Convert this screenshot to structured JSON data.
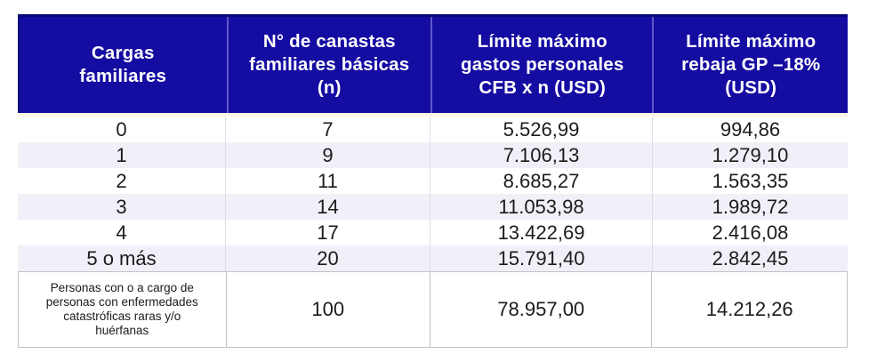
{
  "colors": {
    "header_bg": "#150CA2",
    "header_top_border": "#0A0875",
    "header_divider": "#5F59C6",
    "header_text": "#FFFFFF",
    "cream_separator": "#F9F3E4",
    "row_stripe": "#F0F0F8",
    "row_divider": "#DDDDE4",
    "last_row_border": "#C2C2C2",
    "body_text": "#1B1B1B"
  },
  "display": {
    "headers": [
      "Cargas\nfamiliares",
      "N° de canastas\nfamiliares básicas\n(n)",
      "Límite máximo\ngastos personales\nCFB x n (USD)",
      "Límite máximo\nrebaja GP –18%\n(USD)"
    ],
    "last_row_label": "Personas con o a cargo de\npersonas con enfermedades\ncatastróficas raras y/o\nhuérfanas"
  },
  "chart_data": {
    "type": "table",
    "columns": [
      "Cargas familiares",
      "N° de canastas familiares básicas (n)",
      "Límite máximo gastos personales CFB x n (USD)",
      "Límite máximo rebaja GP –18% (USD)"
    ],
    "rows": [
      [
        "0",
        "7",
        "5.526,99",
        "994,86"
      ],
      [
        "1",
        "9",
        "7.106,13",
        "1.279,10"
      ],
      [
        "2",
        "11",
        "8.685,27",
        "1.563,35"
      ],
      [
        "3",
        "14",
        "11.053,98",
        "1.989,72"
      ],
      [
        "4",
        "17",
        "13.422,69",
        "2.416,08"
      ],
      [
        "5 o más",
        "20",
        "15.791,40",
        "2.842,45"
      ],
      [
        "Personas con o a cargo de personas con enfermedades catastróficas raras y/o huérfanas",
        "100",
        "78.957,00",
        "14.212,26"
      ]
    ]
  }
}
